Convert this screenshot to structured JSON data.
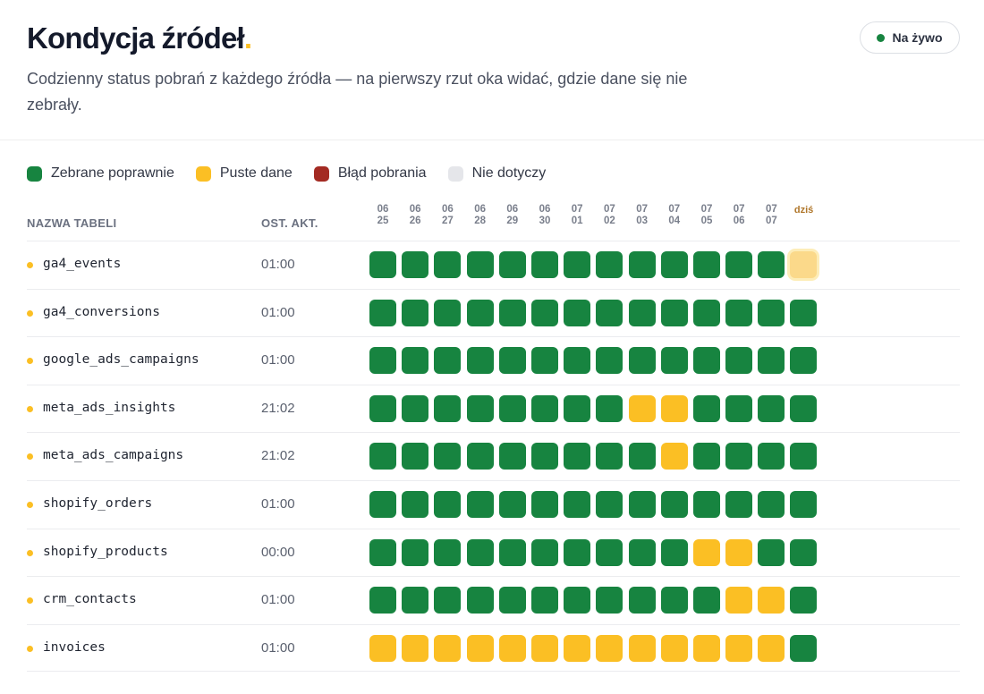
{
  "header": {
    "title": "Kondycja źródeł",
    "title_dot": ".",
    "subtitle": "Codzienny status pobrań z każdego źródła — na pierwszy rzut oka widać, gdzie dane się nie zebrały.",
    "live_label": "Na żywo"
  },
  "legend": [
    {
      "label": "Zebrane poprawnie",
      "color": "#178440"
    },
    {
      "label": "Puste dane",
      "color": "#fbbf24"
    },
    {
      "label": "Błąd pobrania",
      "color": "#a32a22"
    },
    {
      "label": "Nie dotyczy",
      "color": "#e5e6ea"
    }
  ],
  "columns": {
    "name": "NAZWA TABELI",
    "updated": "OST. AKT."
  },
  "dates": [
    {
      "top": "06",
      "bottom": "25"
    },
    {
      "top": "06",
      "bottom": "26"
    },
    {
      "top": "06",
      "bottom": "27"
    },
    {
      "top": "06",
      "bottom": "28"
    },
    {
      "top": "06",
      "bottom": "29"
    },
    {
      "top": "06",
      "bottom": "30"
    },
    {
      "top": "07",
      "bottom": "01"
    },
    {
      "top": "07",
      "bottom": "02"
    },
    {
      "top": "07",
      "bottom": "03"
    },
    {
      "top": "07",
      "bottom": "04"
    },
    {
      "top": "07",
      "bottom": "05"
    },
    {
      "top": "07",
      "bottom": "06"
    },
    {
      "top": "07",
      "bottom": "07"
    },
    {
      "top": "dziś",
      "bottom": "",
      "today": true
    }
  ],
  "rows": [
    {
      "name": "ga4_events",
      "time": "01:00",
      "status": [
        "ok",
        "ok",
        "ok",
        "ok",
        "ok",
        "ok",
        "ok",
        "ok",
        "ok",
        "ok",
        "ok",
        "ok",
        "ok",
        "pending"
      ]
    },
    {
      "name": "ga4_conversions",
      "time": "01:00",
      "status": [
        "ok",
        "ok",
        "ok",
        "ok",
        "ok",
        "ok",
        "ok",
        "ok",
        "ok",
        "ok",
        "ok",
        "ok",
        "ok",
        "ok"
      ]
    },
    {
      "name": "google_ads_campaigns",
      "time": "01:00",
      "status": [
        "ok",
        "ok",
        "ok",
        "ok",
        "ok",
        "ok",
        "ok",
        "ok",
        "ok",
        "ok",
        "ok",
        "ok",
        "ok",
        "ok"
      ]
    },
    {
      "name": "meta_ads_insights",
      "time": "21:02",
      "status": [
        "ok",
        "ok",
        "ok",
        "ok",
        "ok",
        "ok",
        "ok",
        "ok",
        "empty",
        "empty",
        "ok",
        "ok",
        "ok",
        "ok"
      ]
    },
    {
      "name": "meta_ads_campaigns",
      "time": "21:02",
      "status": [
        "ok",
        "ok",
        "ok",
        "ok",
        "ok",
        "ok",
        "ok",
        "ok",
        "ok",
        "empty",
        "ok",
        "ok",
        "ok",
        "ok"
      ]
    },
    {
      "name": "shopify_orders",
      "time": "01:00",
      "status": [
        "ok",
        "ok",
        "ok",
        "ok",
        "ok",
        "ok",
        "ok",
        "ok",
        "ok",
        "ok",
        "ok",
        "ok",
        "ok",
        "ok"
      ]
    },
    {
      "name": "shopify_products",
      "time": "00:00",
      "status": [
        "ok",
        "ok",
        "ok",
        "ok",
        "ok",
        "ok",
        "ok",
        "ok",
        "ok",
        "ok",
        "empty",
        "empty",
        "ok",
        "ok"
      ]
    },
    {
      "name": "crm_contacts",
      "time": "01:00",
      "status": [
        "ok",
        "ok",
        "ok",
        "ok",
        "ok",
        "ok",
        "ok",
        "ok",
        "ok",
        "ok",
        "ok",
        "empty",
        "empty",
        "ok"
      ]
    },
    {
      "name": "invoices",
      "time": "01:00",
      "status": [
        "empty",
        "empty",
        "empty",
        "empty",
        "empty",
        "empty",
        "empty",
        "empty",
        "empty",
        "empty",
        "empty",
        "empty",
        "empty",
        "ok"
      ]
    }
  ]
}
